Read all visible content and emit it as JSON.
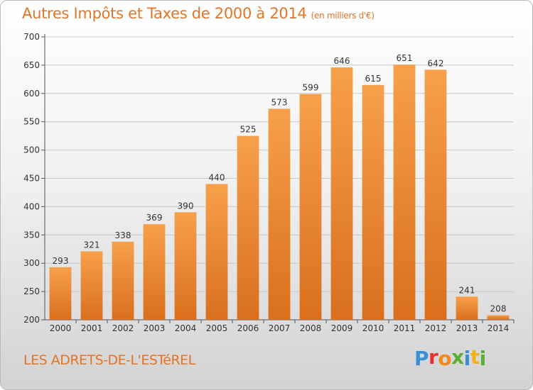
{
  "title": "Autres Impôts et Taxes de 2000 à 2014",
  "subtitle": "(en milliers d'€)",
  "commune": "LES ADRETS-DE-L'ESTéREL",
  "logo": {
    "letters": [
      "P",
      "r",
      "o",
      "x",
      "i",
      "t",
      "i"
    ],
    "colors": [
      "#3b8fd4",
      "#e8312f",
      "#f08a1c",
      "#5aaf32",
      "#3b8fd4",
      "#f2b01e",
      "#5aaf32"
    ]
  },
  "chart_data": {
    "type": "bar",
    "title": "Autres Impôts et Taxes de 2000 à 2014",
    "subtitle": "(en milliers d'€)",
    "categories": [
      "2000",
      "2001",
      "2002",
      "2003",
      "2004",
      "2005",
      "2006",
      "2007",
      "2008",
      "2009",
      "2010",
      "2011",
      "2012",
      "2013",
      "2014"
    ],
    "values": [
      293,
      321,
      338,
      369,
      390,
      440,
      525,
      573,
      599,
      646,
      615,
      651,
      642,
      241,
      208
    ],
    "ylim": [
      200,
      700
    ],
    "yticks": [
      200,
      250,
      300,
      350,
      400,
      450,
      500,
      550,
      600,
      650,
      700
    ],
    "grid": true,
    "colors": {
      "bar_light": "#f7a04c",
      "bar_dark": "#d96f1d",
      "grid": "#c8c8c8",
      "axis": "#555555"
    }
  }
}
